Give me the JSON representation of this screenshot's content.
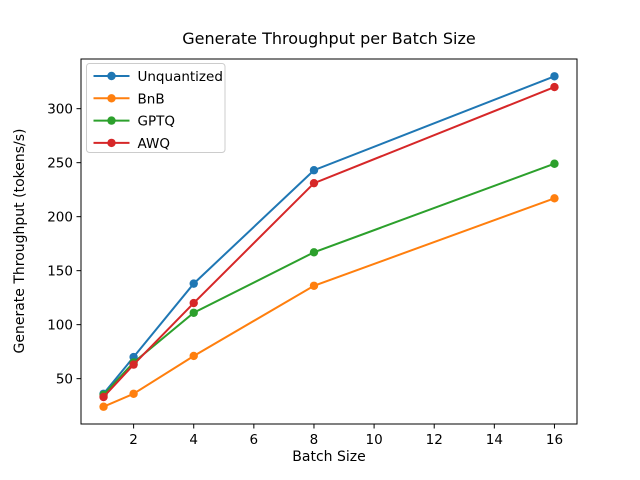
{
  "chart_data": {
    "type": "line",
    "title": "Generate Throughput per Batch Size",
    "xlabel": "Batch Size",
    "ylabel": "Generate Throughput (tokens/s)",
    "x": [
      1,
      2,
      4,
      8,
      16
    ],
    "series": [
      {
        "name": "Unquantized",
        "color": "#1f77b4",
        "values": [
          36,
          70,
          138,
          243,
          330
        ]
      },
      {
        "name": "BnB",
        "color": "#ff7f0e",
        "values": [
          24,
          36,
          71,
          136,
          217
        ]
      },
      {
        "name": "GPTQ",
        "color": "#2ca02c",
        "values": [
          35,
          65,
          111,
          167,
          249
        ]
      },
      {
        "name": "AWQ",
        "color": "#d62728",
        "values": [
          33,
          63,
          120,
          231,
          320
        ]
      }
    ],
    "xticks": [
      2,
      4,
      6,
      8,
      10,
      12,
      14,
      16
    ],
    "yticks": [
      50,
      100,
      150,
      200,
      250,
      300
    ],
    "xlim": [
      0.25,
      16.75
    ],
    "ylim": [
      8,
      346
    ],
    "grid": false,
    "legend_position": "upper left",
    "legend_labels": [
      "Unquantized",
      "BnB",
      "GPTQ",
      "AWQ"
    ],
    "marker": "circle",
    "spine_color": "#000000",
    "legend_border_color": "#cccccc",
    "background_color": "#ffffff"
  }
}
